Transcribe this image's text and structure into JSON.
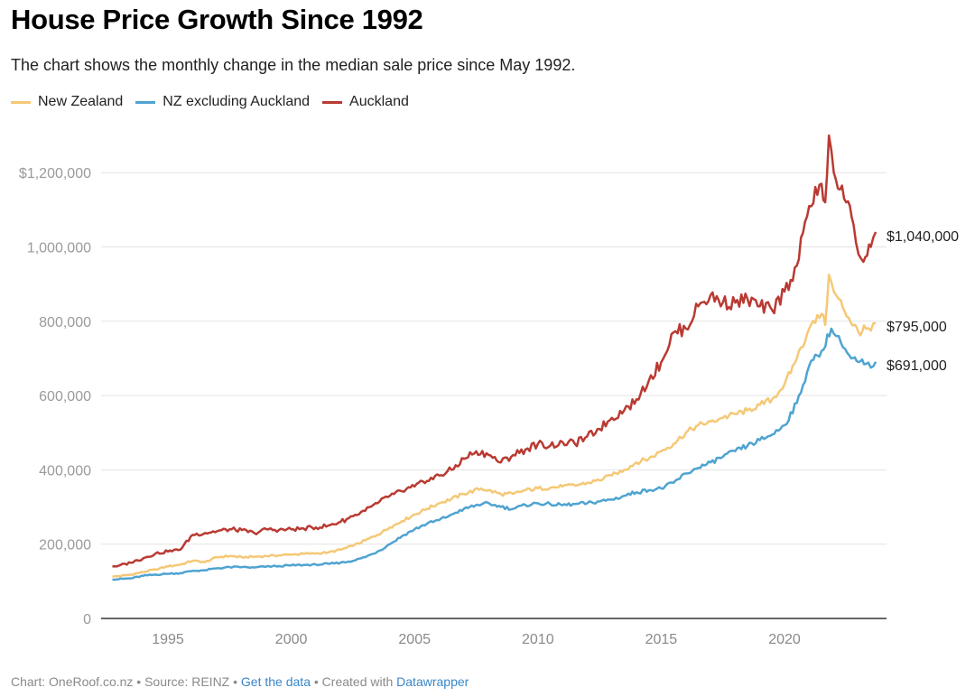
{
  "chart_data": {
    "type": "line",
    "title": "House Price Growth Since 1992",
    "subtitle": "The chart shows the monthly change in the median sale price since May 1992.",
    "xlabel": "",
    "ylabel": "",
    "xlim": [
      1992.4,
      2024.2
    ],
    "ylim": [
      0,
      1300000
    ],
    "x_ticks": [
      1995,
      2000,
      2005,
      2010,
      2015,
      2020
    ],
    "x_tick_labels": [
      "1995",
      "2000",
      "2005",
      "2010",
      "2015",
      "2020"
    ],
    "y_ticks": [
      0,
      200000,
      400000,
      600000,
      800000,
      1000000,
      1200000
    ],
    "y_tick_labels": [
      "0",
      "200,000",
      "400,000",
      "600,000",
      "800,000",
      "1,000,000",
      "$1,200,000"
    ],
    "grid": true,
    "legend_position": "top-left",
    "series": [
      {
        "name": "New Zealand",
        "color": "#f5c876",
        "end_label": "$795,000",
        "points": [
          [
            1992.75,
            112000
          ],
          [
            1993.5,
            118000
          ],
          [
            1994,
            125000
          ],
          [
            1994.5,
            132000
          ],
          [
            1995,
            140000
          ],
          [
            1995.5,
            145000
          ],
          [
            1996,
            155000
          ],
          [
            1996.5,
            152000
          ],
          [
            1997,
            165000
          ],
          [
            1997.5,
            168000
          ],
          [
            1998,
            165000
          ],
          [
            1998.5,
            166000
          ],
          [
            1999,
            168000
          ],
          [
            1999.5,
            170000
          ],
          [
            2000,
            172000
          ],
          [
            2000.5,
            174000
          ],
          [
            2001,
            175000
          ],
          [
            2001.5,
            178000
          ],
          [
            2002,
            185000
          ],
          [
            2002.5,
            195000
          ],
          [
            2003,
            210000
          ],
          [
            2003.5,
            225000
          ],
          [
            2004,
            245000
          ],
          [
            2004.5,
            262000
          ],
          [
            2005,
            280000
          ],
          [
            2005.5,
            295000
          ],
          [
            2006,
            310000
          ],
          [
            2006.5,
            322000
          ],
          [
            2007,
            335000
          ],
          [
            2007.7,
            350000
          ],
          [
            2008,
            345000
          ],
          [
            2008.5,
            335000
          ],
          [
            2009,
            335000
          ],
          [
            2009.5,
            345000
          ],
          [
            2010,
            350000
          ],
          [
            2010.5,
            352000
          ],
          [
            2011,
            355000
          ],
          [
            2011.5,
            358000
          ],
          [
            2012,
            365000
          ],
          [
            2012.5,
            372000
          ],
          [
            2013,
            385000
          ],
          [
            2013.5,
            400000
          ],
          [
            2014,
            420000
          ],
          [
            2014.5,
            430000
          ],
          [
            2015,
            450000
          ],
          [
            2015.5,
            470000
          ],
          [
            2016,
            500000
          ],
          [
            2016.5,
            520000
          ],
          [
            2017,
            530000
          ],
          [
            2017.5,
            540000
          ],
          [
            2018,
            550000
          ],
          [
            2018.5,
            560000
          ],
          [
            2019,
            575000
          ],
          [
            2019.5,
            590000
          ],
          [
            2020,
            630000
          ],
          [
            2020.5,
            700000
          ],
          [
            2021,
            780000
          ],
          [
            2021.5,
            820000
          ],
          [
            2021.65,
            790000
          ],
          [
            2021.8,
            925000
          ],
          [
            2022,
            880000
          ],
          [
            2022.2,
            860000
          ],
          [
            2022.6,
            810000
          ],
          [
            2023,
            770000
          ],
          [
            2023.3,
            780000
          ],
          [
            2023.5,
            775000
          ],
          [
            2023.7,
            795000
          ]
        ]
      },
      {
        "name": "NZ excluding Auckland",
        "color": "#4fa3d1",
        "end_label": "$691,000",
        "points": [
          [
            1992.75,
            105000
          ],
          [
            1993.5,
            108000
          ],
          [
            1994,
            115000
          ],
          [
            1994.5,
            118000
          ],
          [
            1995,
            120000
          ],
          [
            1995.5,
            122000
          ],
          [
            1996,
            128000
          ],
          [
            1996.5,
            130000
          ],
          [
            1997,
            135000
          ],
          [
            1997.5,
            138000
          ],
          [
            1998,
            138000
          ],
          [
            1998.5,
            137000
          ],
          [
            1999,
            140000
          ],
          [
            1999.5,
            141000
          ],
          [
            2000,
            143000
          ],
          [
            2000.5,
            144000
          ],
          [
            2001,
            145000
          ],
          [
            2001.5,
            147000
          ],
          [
            2002,
            150000
          ],
          [
            2002.5,
            155000
          ],
          [
            2003,
            165000
          ],
          [
            2003.5,
            180000
          ],
          [
            2004,
            200000
          ],
          [
            2004.5,
            222000
          ],
          [
            2005,
            240000
          ],
          [
            2005.5,
            255000
          ],
          [
            2006,
            265000
          ],
          [
            2006.5,
            280000
          ],
          [
            2007,
            295000
          ],
          [
            2007.8,
            310000
          ],
          [
            2008.2,
            305000
          ],
          [
            2008.5,
            300000
          ],
          [
            2009,
            295000
          ],
          [
            2009.5,
            305000
          ],
          [
            2010,
            310000
          ],
          [
            2010.5,
            308000
          ],
          [
            2011,
            305000
          ],
          [
            2011.5,
            308000
          ],
          [
            2012,
            310000
          ],
          [
            2012.5,
            315000
          ],
          [
            2013,
            320000
          ],
          [
            2013.5,
            330000
          ],
          [
            2014,
            340000
          ],
          [
            2014.5,
            345000
          ],
          [
            2015,
            350000
          ],
          [
            2015.5,
            365000
          ],
          [
            2016,
            390000
          ],
          [
            2016.5,
            405000
          ],
          [
            2017,
            420000
          ],
          [
            2017.5,
            435000
          ],
          [
            2018,
            450000
          ],
          [
            2018.5,
            465000
          ],
          [
            2019,
            480000
          ],
          [
            2019.5,
            495000
          ],
          [
            2020,
            520000
          ],
          [
            2020.5,
            580000
          ],
          [
            2021,
            680000
          ],
          [
            2021.5,
            720000
          ],
          [
            2021.9,
            780000
          ],
          [
            2022.1,
            760000
          ],
          [
            2022.3,
            740000
          ],
          [
            2022.7,
            700000
          ],
          [
            2023,
            690000
          ],
          [
            2023.3,
            685000
          ],
          [
            2023.5,
            675000
          ],
          [
            2023.7,
            691000
          ]
        ]
      },
      {
        "name": "Auckland",
        "color": "#b93a32",
        "end_label": "$1,040,000",
        "points": [
          [
            1992.75,
            140000
          ],
          [
            1993,
            142000
          ],
          [
            1993.5,
            150000
          ],
          [
            1994,
            162000
          ],
          [
            1994.5,
            175000
          ],
          [
            1995,
            180000
          ],
          [
            1995.5,
            185000
          ],
          [
            1996,
            225000
          ],
          [
            1996.5,
            230000
          ],
          [
            1997,
            235000
          ],
          [
            1997.5,
            240000
          ],
          [
            1998,
            238000
          ],
          [
            1998.5,
            230000
          ],
          [
            1999,
            240000
          ],
          [
            1999.5,
            238000
          ],
          [
            2000,
            240000
          ],
          [
            2000.5,
            242000
          ],
          [
            2001,
            245000
          ],
          [
            2001.5,
            250000
          ],
          [
            2002,
            260000
          ],
          [
            2002.5,
            275000
          ],
          [
            2003,
            290000
          ],
          [
            2003.5,
            310000
          ],
          [
            2004,
            330000
          ],
          [
            2004.5,
            342000
          ],
          [
            2005,
            355000
          ],
          [
            2005.5,
            370000
          ],
          [
            2006,
            385000
          ],
          [
            2006.5,
            400000
          ],
          [
            2007,
            430000
          ],
          [
            2007.5,
            450000
          ],
          [
            2008,
            440000
          ],
          [
            2008.5,
            420000
          ],
          [
            2009,
            440000
          ],
          [
            2009.5,
            455000
          ],
          [
            2010,
            470000
          ],
          [
            2010.5,
            465000
          ],
          [
            2011,
            475000
          ],
          [
            2011.5,
            470000
          ],
          [
            2012,
            490000
          ],
          [
            2012.5,
            510000
          ],
          [
            2013,
            540000
          ],
          [
            2013.5,
            560000
          ],
          [
            2014,
            590000
          ],
          [
            2014.5,
            640000
          ],
          [
            2015,
            690000
          ],
          [
            2015.5,
            770000
          ],
          [
            2016,
            780000
          ],
          [
            2016.5,
            840000
          ],
          [
            2017,
            870000
          ],
          [
            2017.5,
            850000
          ],
          [
            2018,
            850000
          ],
          [
            2018.5,
            860000
          ],
          [
            2019,
            840000
          ],
          [
            2019.5,
            830000
          ],
          [
            2020,
            880000
          ],
          [
            2020.5,
            950000
          ],
          [
            2021,
            1110000
          ],
          [
            2021.5,
            1170000
          ],
          [
            2021.65,
            1120000
          ],
          [
            2021.8,
            1300000
          ],
          [
            2022,
            1200000
          ],
          [
            2022.5,
            1120000
          ],
          [
            2022.8,
            1060000
          ],
          [
            2023,
            980000
          ],
          [
            2023.2,
            960000
          ],
          [
            2023.5,
            1000000
          ],
          [
            2023.7,
            1040000
          ]
        ]
      }
    ]
  },
  "footer": {
    "credit": "Chart: OneRoof.co.nz",
    "source": "Source: REINZ",
    "get_data_link": "Get the data",
    "created_with": "Created with",
    "datawrapper_link": "Datawrapper",
    "separator": " • "
  }
}
